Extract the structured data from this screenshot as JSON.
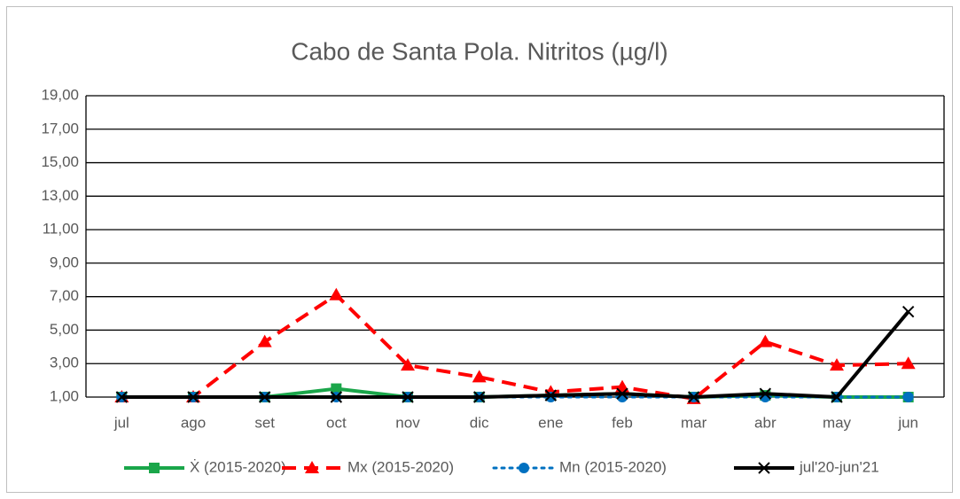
{
  "chart_data": {
    "type": "line",
    "title": "Cabo de Santa Pola. Nitritos (µg/l)",
    "categories": [
      "jul",
      "ago",
      "set",
      "oct",
      "nov",
      "dic",
      "ene",
      "feb",
      "mar",
      "abr",
      "may",
      "jun"
    ],
    "series": [
      {
        "name": "Ẋ (2015-2020)",
        "color": "#1aa64a",
        "line_style": "solid",
        "marker": "square",
        "values": [
          1,
          1,
          1,
          1.5,
          1,
          1,
          1.1,
          1.2,
          1,
          1.1,
          1,
          1
        ]
      },
      {
        "name": "Mx (2015-2020)",
        "color": "#ff0000",
        "line_style": "dashed",
        "marker": "triangle",
        "values": [
          1,
          1,
          4.3,
          7.1,
          2.9,
          2.2,
          1.3,
          1.6,
          0.9,
          4.3,
          2.9,
          3.0
        ]
      },
      {
        "name": "Mn (2015-2020)",
        "color": "#0070c0",
        "line_style": "dotted",
        "marker": "circle",
        "values": [
          1,
          1,
          1,
          1,
          1,
          1,
          1,
          1,
          1,
          1,
          1,
          1
        ]
      },
      {
        "name": "jul'20-jun'21",
        "color": "#000000",
        "line_style": "solid",
        "marker": "x",
        "values": [
          1,
          1,
          1,
          1,
          1,
          1,
          1.1,
          1.2,
          1,
          1.2,
          1,
          6.1
        ]
      }
    ],
    "ylim": [
      1,
      19
    ],
    "yticks": [
      {
        "value": 1,
        "label": "1,00"
      },
      {
        "value": 3,
        "label": "3,00"
      },
      {
        "value": 5,
        "label": "5,00"
      },
      {
        "value": 7,
        "label": "7,00"
      },
      {
        "value": 9,
        "label": "9,00"
      },
      {
        "value": 11,
        "label": "11,00"
      },
      {
        "value": 13,
        "label": "13,00"
      },
      {
        "value": 15,
        "label": "15,00"
      },
      {
        "value": 17,
        "label": "17,00"
      },
      {
        "value": 19,
        "label": "19,00"
      }
    ],
    "grid": true,
    "legend": "bottom"
  }
}
